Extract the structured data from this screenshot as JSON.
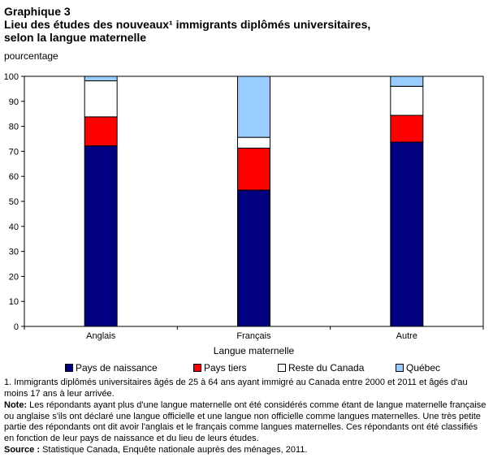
{
  "title_line1": "Graphique 3",
  "title_line2": "Lieu des études des nouveaux¹ immigrants diplômés universitaires,",
  "title_line3": "selon la langue maternelle",
  "chart_data": {
    "type": "bar",
    "stacked": true,
    "ylabel": "pourcentage",
    "xlabel": "Langue maternelle",
    "ylim": [
      0,
      100
    ],
    "yticks": [
      0,
      10,
      20,
      30,
      40,
      50,
      60,
      70,
      80,
      90,
      100
    ],
    "categories": [
      "Anglais",
      "Français",
      "Autre"
    ],
    "series": [
      {
        "name": "Pays de naissance",
        "color": "#000080",
        "values": [
          72.2,
          54.5,
          73.7
        ]
      },
      {
        "name": "Pays tiers",
        "color": "#ff0000",
        "values": [
          11.6,
          16.8,
          10.7
        ]
      },
      {
        "name": "Reste du Canada",
        "color": "#ffffff",
        "values": [
          14.4,
          4.3,
          11.6
        ]
      },
      {
        "name": "Québec",
        "color": "#99ccff",
        "values": [
          1.8,
          24.4,
          4.0
        ]
      }
    ],
    "legend": "bottom"
  },
  "notes": {
    "footnote": "1. Immigrants diplômés universitaires âgés de 25 à 64 ans ayant immigré au Canada entre 2000 et 2011 et âgés d'au moins 17 ans à leur arrivée.",
    "note_label": "Note:",
    "note_text": " Les répondants ayant plus d'une langue maternelle ont été considérés comme étant de langue maternelle française ou anglaise s'ils ont déclaré une langue officielle et une langue non officielle comme langues maternelles. Une très petite partie des répondants ont dit avoir l'anglais et le français comme langues maternelles. Ces répondants ont été classifiés en fonction de leur pays de naissance et du lieu de leurs études.",
    "source_label": "Source :",
    "source_text": " Statistique Canada, Enquête nationale auprès des ménages, 2011."
  }
}
